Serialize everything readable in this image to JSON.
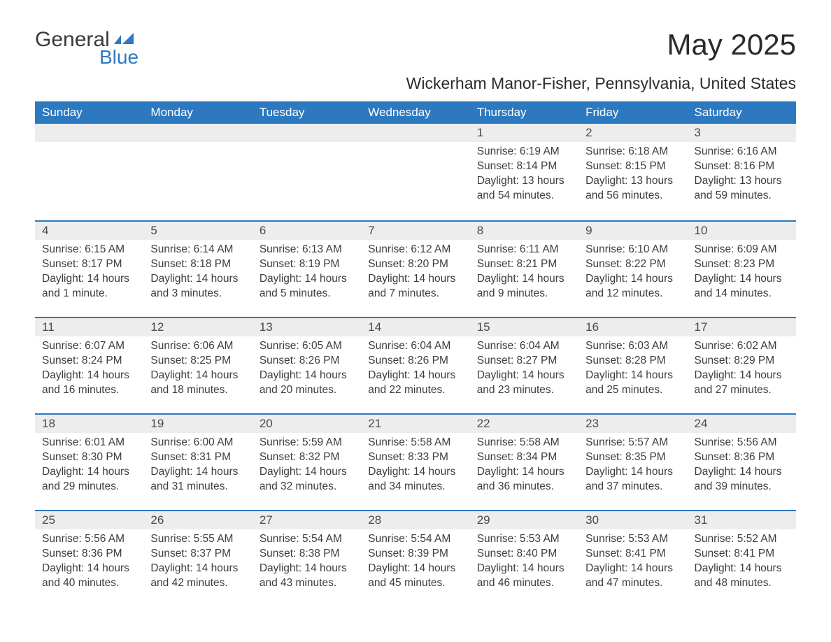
{
  "logo": {
    "text_general": "General",
    "text_blue": "Blue",
    "flag_color": "#2d79c0"
  },
  "title": "May 2025",
  "location": "Wickerham Manor-Fisher, Pennsylvania, United States",
  "colors": {
    "header_bg": "#2d79c0",
    "header_text": "#ffffff",
    "daynum_bg": "#ededed",
    "daynum_border": "#2d79c0",
    "body_text": "#3d3d3d",
    "title_text": "#2b2b2b"
  },
  "day_headers": [
    "Sunday",
    "Monday",
    "Tuesday",
    "Wednesday",
    "Thursday",
    "Friday",
    "Saturday"
  ],
  "weeks": [
    [
      null,
      null,
      null,
      null,
      {
        "n": "1",
        "sunrise": "6:19 AM",
        "sunset": "8:14 PM",
        "daylight": "13 hours and 54 minutes."
      },
      {
        "n": "2",
        "sunrise": "6:18 AM",
        "sunset": "8:15 PM",
        "daylight": "13 hours and 56 minutes."
      },
      {
        "n": "3",
        "sunrise": "6:16 AM",
        "sunset": "8:16 PM",
        "daylight": "13 hours and 59 minutes."
      }
    ],
    [
      {
        "n": "4",
        "sunrise": "6:15 AM",
        "sunset": "8:17 PM",
        "daylight": "14 hours and 1 minute."
      },
      {
        "n": "5",
        "sunrise": "6:14 AM",
        "sunset": "8:18 PM",
        "daylight": "14 hours and 3 minutes."
      },
      {
        "n": "6",
        "sunrise": "6:13 AM",
        "sunset": "8:19 PM",
        "daylight": "14 hours and 5 minutes."
      },
      {
        "n": "7",
        "sunrise": "6:12 AM",
        "sunset": "8:20 PM",
        "daylight": "14 hours and 7 minutes."
      },
      {
        "n": "8",
        "sunrise": "6:11 AM",
        "sunset": "8:21 PM",
        "daylight": "14 hours and 9 minutes."
      },
      {
        "n": "9",
        "sunrise": "6:10 AM",
        "sunset": "8:22 PM",
        "daylight": "14 hours and 12 minutes."
      },
      {
        "n": "10",
        "sunrise": "6:09 AM",
        "sunset": "8:23 PM",
        "daylight": "14 hours and 14 minutes."
      }
    ],
    [
      {
        "n": "11",
        "sunrise": "6:07 AM",
        "sunset": "8:24 PM",
        "daylight": "14 hours and 16 minutes."
      },
      {
        "n": "12",
        "sunrise": "6:06 AM",
        "sunset": "8:25 PM",
        "daylight": "14 hours and 18 minutes."
      },
      {
        "n": "13",
        "sunrise": "6:05 AM",
        "sunset": "8:26 PM",
        "daylight": "14 hours and 20 minutes."
      },
      {
        "n": "14",
        "sunrise": "6:04 AM",
        "sunset": "8:26 PM",
        "daylight": "14 hours and 22 minutes."
      },
      {
        "n": "15",
        "sunrise": "6:04 AM",
        "sunset": "8:27 PM",
        "daylight": "14 hours and 23 minutes."
      },
      {
        "n": "16",
        "sunrise": "6:03 AM",
        "sunset": "8:28 PM",
        "daylight": "14 hours and 25 minutes."
      },
      {
        "n": "17",
        "sunrise": "6:02 AM",
        "sunset": "8:29 PM",
        "daylight": "14 hours and 27 minutes."
      }
    ],
    [
      {
        "n": "18",
        "sunrise": "6:01 AM",
        "sunset": "8:30 PM",
        "daylight": "14 hours and 29 minutes."
      },
      {
        "n": "19",
        "sunrise": "6:00 AM",
        "sunset": "8:31 PM",
        "daylight": "14 hours and 31 minutes."
      },
      {
        "n": "20",
        "sunrise": "5:59 AM",
        "sunset": "8:32 PM",
        "daylight": "14 hours and 32 minutes."
      },
      {
        "n": "21",
        "sunrise": "5:58 AM",
        "sunset": "8:33 PM",
        "daylight": "14 hours and 34 minutes."
      },
      {
        "n": "22",
        "sunrise": "5:58 AM",
        "sunset": "8:34 PM",
        "daylight": "14 hours and 36 minutes."
      },
      {
        "n": "23",
        "sunrise": "5:57 AM",
        "sunset": "8:35 PM",
        "daylight": "14 hours and 37 minutes."
      },
      {
        "n": "24",
        "sunrise": "5:56 AM",
        "sunset": "8:36 PM",
        "daylight": "14 hours and 39 minutes."
      }
    ],
    [
      {
        "n": "25",
        "sunrise": "5:56 AM",
        "sunset": "8:36 PM",
        "daylight": "14 hours and 40 minutes."
      },
      {
        "n": "26",
        "sunrise": "5:55 AM",
        "sunset": "8:37 PM",
        "daylight": "14 hours and 42 minutes."
      },
      {
        "n": "27",
        "sunrise": "5:54 AM",
        "sunset": "8:38 PM",
        "daylight": "14 hours and 43 minutes."
      },
      {
        "n": "28",
        "sunrise": "5:54 AM",
        "sunset": "8:39 PM",
        "daylight": "14 hours and 45 minutes."
      },
      {
        "n": "29",
        "sunrise": "5:53 AM",
        "sunset": "8:40 PM",
        "daylight": "14 hours and 46 minutes."
      },
      {
        "n": "30",
        "sunrise": "5:53 AM",
        "sunset": "8:41 PM",
        "daylight": "14 hours and 47 minutes."
      },
      {
        "n": "31",
        "sunrise": "5:52 AM",
        "sunset": "8:41 PM",
        "daylight": "14 hours and 48 minutes."
      }
    ]
  ],
  "labels": {
    "sunrise": "Sunrise: ",
    "sunset": "Sunset: ",
    "daylight": "Daylight: "
  }
}
